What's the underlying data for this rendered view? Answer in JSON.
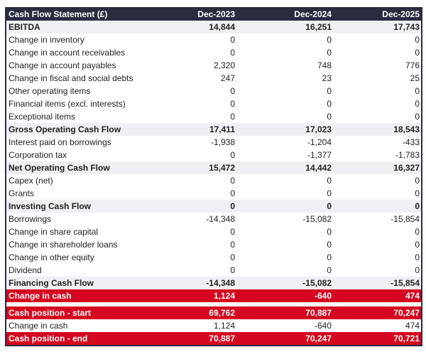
{
  "header": {
    "title": "Cash Flow Statement (£)",
    "columns": [
      "Dec-2023",
      "Dec-2024",
      "Dec-2025"
    ]
  },
  "colors": {
    "header": "#2a2c40",
    "subtotal": "#eef0f3",
    "highlight": "#d5061f"
  },
  "rows": [
    {
      "label": "EBITDA",
      "values": [
        "14,844",
        "16,251",
        "17,743"
      ],
      "style": "sub"
    },
    {
      "label": "Change in inventory",
      "values": [
        "0",
        "0",
        "0"
      ],
      "style": ""
    },
    {
      "label": "Change in account receivables",
      "values": [
        "0",
        "0",
        "0"
      ],
      "style": ""
    },
    {
      "label": "Change in account payables",
      "values": [
        "2,320",
        "748",
        "776"
      ],
      "style": ""
    },
    {
      "label": "Change in fiscal and social debts",
      "values": [
        "247",
        "23",
        "25"
      ],
      "style": ""
    },
    {
      "label": "Other operating items",
      "values": [
        "0",
        "0",
        "0"
      ],
      "style": ""
    },
    {
      "label": "Financial items (excl. interests)",
      "values": [
        "0",
        "0",
        "0"
      ],
      "style": ""
    },
    {
      "label": "Exceptional items",
      "values": [
        "0",
        "0",
        "0"
      ],
      "style": ""
    },
    {
      "label": "Gross Operating Cash Flow",
      "values": [
        "17,411",
        "17,023",
        "18,543"
      ],
      "style": "sub"
    },
    {
      "label": "Interest paid on borrowings",
      "values": [
        "-1,938",
        "-1,204",
        "-433"
      ],
      "style": ""
    },
    {
      "label": "Corporation tax",
      "values": [
        "0",
        "-1,377",
        "-1,783"
      ],
      "style": ""
    },
    {
      "label": "Net Operating Cash Flow",
      "values": [
        "15,472",
        "14,442",
        "16,327"
      ],
      "style": "sub"
    },
    {
      "label": "Capex (net)",
      "values": [
        "0",
        "0",
        "0"
      ],
      "style": ""
    },
    {
      "label": "Grants",
      "values": [
        "0",
        "0",
        "0"
      ],
      "style": ""
    },
    {
      "label": "Investing Cash Flow",
      "values": [
        "0",
        "0",
        "0"
      ],
      "style": "sub"
    },
    {
      "label": "Borrowings",
      "values": [
        "-14,348",
        "-15,082",
        "-15,854"
      ],
      "style": ""
    },
    {
      "label": "Change in share capital",
      "values": [
        "0",
        "0",
        "0"
      ],
      "style": ""
    },
    {
      "label": "Change in shareholder loans",
      "values": [
        "0",
        "0",
        "0"
      ],
      "style": ""
    },
    {
      "label": "Change in other equity",
      "values": [
        "0",
        "0",
        "0"
      ],
      "style": ""
    },
    {
      "label": "Dividend",
      "values": [
        "0",
        "0",
        "0"
      ],
      "style": ""
    },
    {
      "label": "Financing Cash Flow",
      "values": [
        "-14,348",
        "-15,082",
        "-15,854"
      ],
      "style": "sub"
    },
    {
      "label": "Change in cash",
      "values": [
        "1,124",
        "-640",
        "474"
      ],
      "style": "red"
    },
    {
      "gap": true
    },
    {
      "label": "Cash position - start",
      "values": [
        "69,762",
        "70,887",
        "70,247"
      ],
      "style": "red"
    },
    {
      "label": "Change in cash",
      "values": [
        "1,124",
        "-640",
        "474"
      ],
      "style": ""
    },
    {
      "label": "Cash position - end",
      "values": [
        "70,887",
        "70,247",
        "70,721"
      ],
      "style": "red"
    }
  ]
}
